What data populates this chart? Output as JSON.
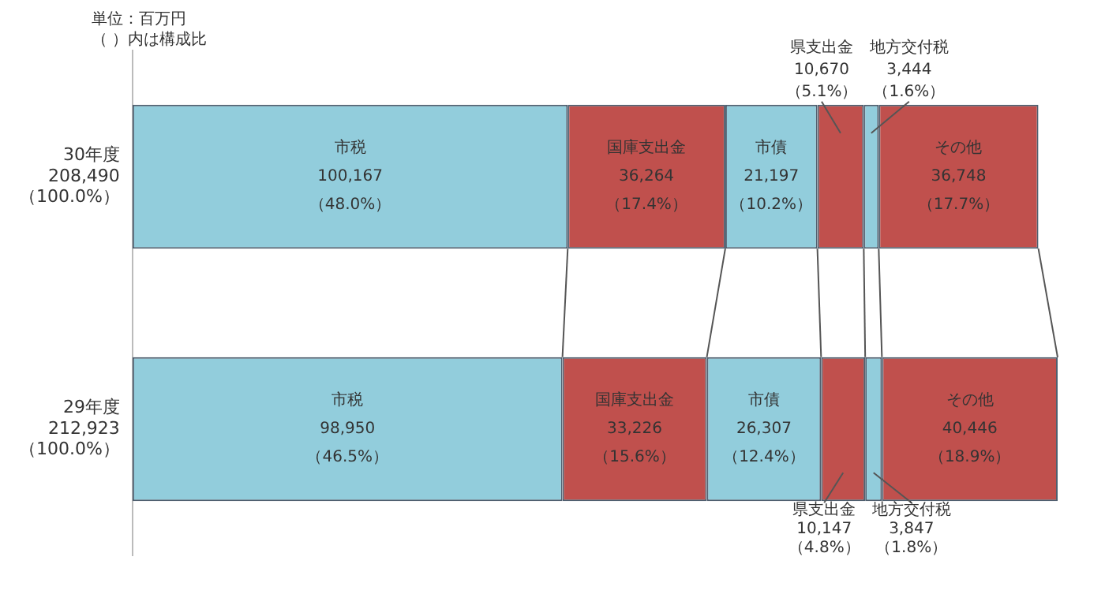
{
  "chart_data": {
    "type": "bar",
    "orientation": "horizontal",
    "stacked": true,
    "legend": false,
    "tick_labels": "y",
    "categories": [
      "30年度",
      "29年度"
    ],
    "totals": [
      "208,490\n（100.0%）",
      "212,923\n（100.0%）"
    ],
    "annotations": [
      "単位：百万円",
      "（ ）内は構成比"
    ],
    "series": [
      {
        "name": "市税",
        "color": "#92cddc",
        "values": [
          100167,
          98950
        ],
        "value_labels": [
          "100,167\n（48.0%）",
          "98,950\n（46.5%）"
        ]
      },
      {
        "name": "国庫支出金",
        "color": "#c0504d",
        "values": [
          36264,
          33226
        ],
        "value_labels": [
          "36,264\n（17.4%）",
          "33,226\n（15.6%）"
        ]
      },
      {
        "name": "市債",
        "color": "#92cddc",
        "values": [
          21197,
          26307
        ],
        "value_labels": [
          "21,197\n（10.2%）",
          "26,307\n（12.4%）"
        ]
      },
      {
        "name": "県支出金",
        "color": "#c0504d",
        "values": [
          10670,
          10147
        ],
        "value_labels": [
          "10,670\n（5.1%）",
          "10,147\n（4.8%）"
        ]
      },
      {
        "name": "地方交付税",
        "color": "#92cddc",
        "values": [
          3444,
          3847
        ],
        "value_labels": [
          "3,444\n（1.6%）",
          "3,847\n（1.8%）"
        ]
      },
      {
        "name": "その他",
        "color": "#c0504d",
        "values": [
          36748,
          40446
        ],
        "value_labels": [
          "36,748\n（17.7%）",
          "40,446\n（18.9%）"
        ]
      }
    ]
  }
}
